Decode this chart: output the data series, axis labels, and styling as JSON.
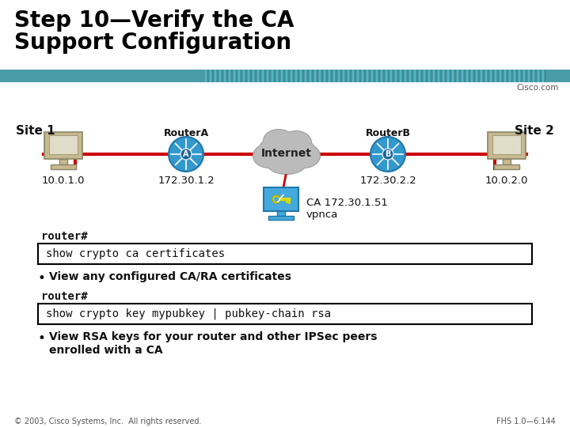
{
  "title_line1": "Step 10—Verify the CA",
  "title_line2": "Support Configuration",
  "title_fontsize": 20,
  "title_color": "#000000",
  "header_bar_color": "#4a9da8",
  "cisco_text": "Cisco.com",
  "site1_label": "Site 1",
  "site2_label": "Site 2",
  "routerA_label": "RouterA",
  "routerB_label": "RouterB",
  "internet_label": "Internet",
  "ip_site1": "10.0.1.0",
  "ip_routerA": "172.30.1.2",
  "ip_routerB": "172.30.2.2",
  "ip_site2": "10.0.2.0",
  "ca_label": "CA 172.30.1.51\nvpnca",
  "router_prompt1": "router#",
  "cmd1": "show crypto ca certificates",
  "bullet1": "View any configured CA/RA certificates",
  "router_prompt2": "router#",
  "cmd2": "show crypto key mypubkey | pubkey-chain rsa",
  "bullet2_line1": "View RSA keys for your router and other IPSec peers",
  "bullet2_line2": "enrolled with a CA",
  "footer_left": "© 2003, Cisco Systems, Inc.  All rights reserved.",
  "footer_right": "FHS 1.0—6.144",
  "bg_color": "#ffffff",
  "line_color": "#cc0000",
  "box_bg": "#ffffff",
  "box_border": "#000000",
  "router_color": "#3399cc",
  "router_edge": "#2277aa",
  "cloud_color": "#bbbbbb",
  "cloud_edge": "#999999",
  "monitor_color": "#c8b890",
  "monitor_edge": "#888866",
  "ca_color": "#44aadd"
}
